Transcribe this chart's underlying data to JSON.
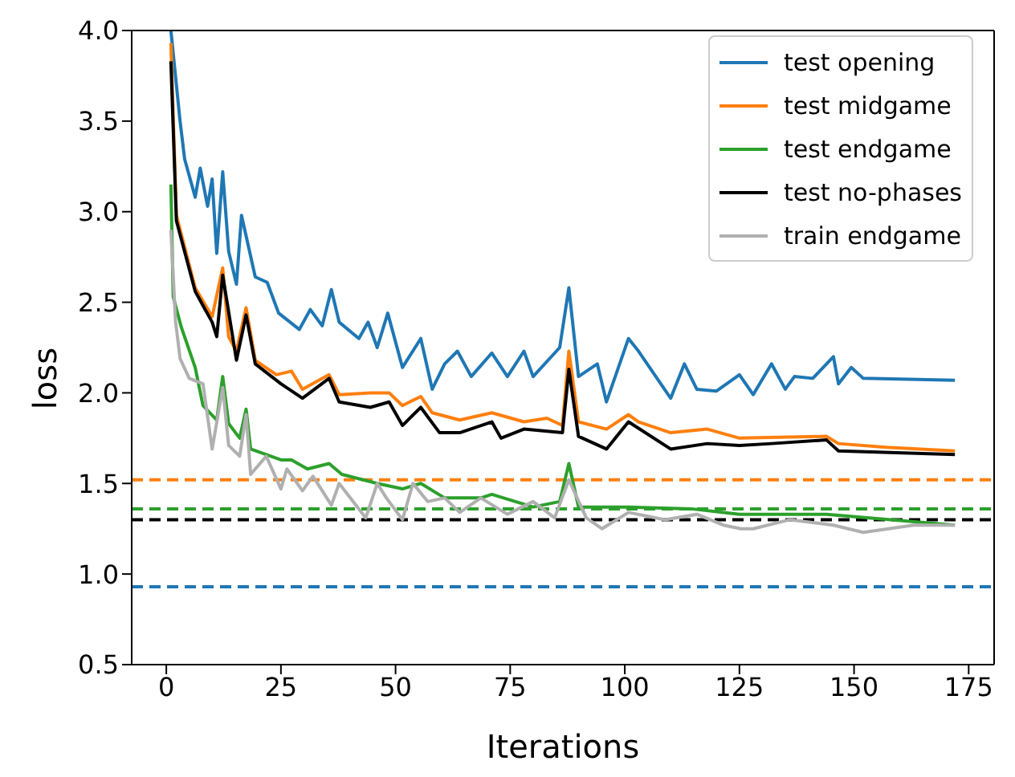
{
  "chart_data": {
    "type": "line",
    "xlabel": "Iterations",
    "ylabel": "loss",
    "xlim": [
      -7.55,
      180.55
    ],
    "xticks": [
      0,
      25,
      50,
      75,
      100,
      125,
      150,
      175
    ],
    "ylim": [
      0.5,
      4.0
    ],
    "yticks": [
      0.5,
      {
        "value": 1,
        "label": "1.0"
      },
      1.5,
      {
        "value": 2,
        "label": "2.0"
      },
      2.5,
      {
        "value": 3,
        "label": "3.0"
      },
      3.5,
      {
        "value": 4,
        "label": "4.0"
      }
    ],
    "legend": "top right",
    "marker": "none",
    "line_style": "solid",
    "series": [
      {
        "name": "test opening",
        "color": "#1f77b4",
        "x": [
          1,
          3,
          4,
          6.3,
          7.4,
          9,
          10,
          11,
          12.3,
          13.6,
          15.3,
          16.4,
          19.4,
          22,
          24.5,
          29,
          31.4,
          34,
          36,
          37.7,
          42,
          44,
          46,
          48.3,
          51.5,
          55.5,
          58,
          60.7,
          63.5,
          66.5,
          71,
          74.4,
          78,
          80,
          85.8,
          87.8,
          89.9,
          94,
          96,
          100.8,
          103,
          110,
          113,
          115.7,
          120,
          125,
          128,
          132,
          135,
          137,
          141,
          145.5,
          146.6,
          149.4,
          152,
          172
        ],
        "values": [
          4.0,
          3.5,
          3.29,
          3.08,
          3.24,
          3.03,
          3.18,
          2.77,
          3.22,
          2.78,
          2.6,
          2.98,
          2.64,
          2.61,
          2.44,
          2.35,
          2.46,
          2.37,
          2.57,
          2.39,
          2.3,
          2.39,
          2.25,
          2.44,
          2.14,
          2.3,
          2.02,
          2.16,
          2.23,
          2.09,
          2.22,
          2.09,
          2.23,
          2.09,
          2.25,
          2.58,
          2.09,
          2.16,
          1.95,
          2.3,
          2.23,
          1.97,
          2.16,
          2.02,
          2.01,
          2.1,
          1.99,
          2.16,
          2.02,
          2.09,
          2.08,
          2.2,
          2.05,
          2.14,
          2.08,
          2.07
        ]
      },
      {
        "name": "test midgame",
        "color": "#ff7f0e",
        "x": [
          1,
          2.2,
          6.3,
          10,
          12.3,
          13.6,
          15.3,
          17.4,
          19.4,
          24,
          27.3,
          29.7,
          35.5,
          37.7,
          44.5,
          48.6,
          51.5,
          55.5,
          58,
          64,
          71,
          78,
          83,
          86.4,
          87.8,
          89.9,
          96,
          100.8,
          103,
          110,
          118,
          125,
          144,
          146.6,
          157,
          172
        ],
        "values": [
          3.93,
          2.98,
          2.58,
          2.42,
          2.69,
          2.31,
          2.23,
          2.47,
          2.18,
          2.1,
          2.12,
          2.02,
          2.1,
          1.99,
          2.0,
          2.0,
          1.93,
          1.98,
          1.89,
          1.85,
          1.89,
          1.84,
          1.86,
          1.82,
          2.23,
          1.84,
          1.8,
          1.88,
          1.84,
          1.78,
          1.8,
          1.75,
          1.76,
          1.72,
          1.7,
          1.68
        ]
      },
      {
        "name": "test endgame",
        "color": "#2ca02c",
        "x": [
          1,
          1.5,
          3.3,
          6.3,
          8,
          11,
          12.3,
          13.6,
          16,
          17.4,
          18.4,
          25,
          27.3,
          30.8,
          35.5,
          38.3,
          46,
          51.5,
          55.5,
          60.7,
          68.6,
          71,
          80,
          85.8,
          87.8,
          89.9,
          100.8,
          114.5,
          125,
          144,
          172
        ],
        "values": [
          3.15,
          2.53,
          2.36,
          2.14,
          1.93,
          1.85,
          2.09,
          1.83,
          1.75,
          1.91,
          1.69,
          1.63,
          1.63,
          1.58,
          1.61,
          1.55,
          1.5,
          1.47,
          1.5,
          1.42,
          1.42,
          1.44,
          1.37,
          1.4,
          1.61,
          1.37,
          1.37,
          1.36,
          1.33,
          1.33,
          1.27
        ]
      },
      {
        "name": "test no-phases",
        "color": "#000000",
        "x": [
          1,
          2.2,
          6.3,
          10,
          11,
          12.3,
          15.3,
          17.4,
          19.4,
          25,
          29.7,
          35.5,
          37.7,
          44.5,
          48.6,
          51.5,
          55.5,
          59.6,
          64,
          71,
          73,
          78,
          86.4,
          87.8,
          89.9,
          96,
          100.8,
          110,
          118,
          125,
          132,
          144,
          146.6,
          172
        ],
        "values": [
          3.83,
          2.95,
          2.56,
          2.39,
          2.31,
          2.65,
          2.18,
          2.43,
          2.16,
          2.05,
          1.97,
          2.08,
          1.95,
          1.92,
          1.95,
          1.82,
          1.92,
          1.78,
          1.78,
          1.84,
          1.75,
          1.8,
          1.78,
          2.13,
          1.76,
          1.69,
          1.84,
          1.69,
          1.72,
          1.71,
          1.72,
          1.74,
          1.68,
          1.66
        ]
      },
      {
        "name": "train endgame",
        "color": "#b0b0b0",
        "x": [
          1,
          2,
          3,
          5,
          8,
          10,
          12.3,
          13.6,
          16,
          17.4,
          18.4,
          21.8,
          25,
          26.3,
          29.7,
          32,
          36,
          37.7,
          43.5,
          46,
          48,
          51.5,
          53.8,
          57,
          60.7,
          64,
          68.6,
          74.4,
          80,
          84.7,
          87.8,
          91.6,
          95,
          100.8,
          108.8,
          115.7,
          121.5,
          125.3,
          128,
          136,
          145.5,
          152,
          163,
          172
        ],
        "values": [
          2.9,
          2.4,
          2.19,
          2.08,
          2.05,
          1.69,
          2.03,
          1.71,
          1.65,
          1.88,
          1.55,
          1.65,
          1.47,
          1.58,
          1.46,
          1.54,
          1.38,
          1.5,
          1.31,
          1.5,
          1.42,
          1.3,
          1.5,
          1.4,
          1.42,
          1.34,
          1.42,
          1.33,
          1.4,
          1.31,
          1.52,
          1.31,
          1.25,
          1.34,
          1.3,
          1.33,
          1.27,
          1.25,
          1.25,
          1.3,
          1.27,
          1.23,
          1.27,
          1.27
        ]
      }
    ],
    "ref_lines": [
      {
        "axis": "y",
        "value": 1.52,
        "color": "#ff7f0e",
        "line_style": "dashed"
      },
      {
        "axis": "y",
        "value": 1.36,
        "color": "#2ca02c",
        "line_style": "dashed"
      },
      {
        "axis": "y",
        "value": 1.3,
        "color": "#000000",
        "line_style": "dashed"
      },
      {
        "axis": "y",
        "value": 0.93,
        "color": "#1f77b4",
        "line_style": "dashed"
      }
    ]
  }
}
